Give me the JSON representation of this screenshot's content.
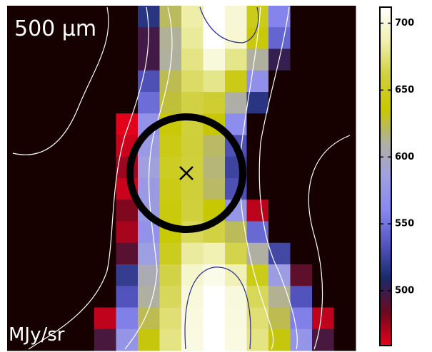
{
  "chart_data": {
    "type": "heatmap",
    "annotations": [
      "500 μm",
      "MJy/sr"
    ],
    "z": [
      [
        440,
        440,
        440,
        440,
        440,
        440,
        516,
        621,
        685,
        712,
        699,
        647,
        558,
        440,
        440,
        440
      ],
      [
        440,
        440,
        440,
        440,
        440,
        440,
        497,
        612,
        682,
        712,
        698,
        640,
        543,
        440,
        440,
        440
      ],
      [
        440,
        440,
        440,
        440,
        440,
        440,
        497,
        611,
        677,
        700,
        678,
        611,
        501,
        440,
        440,
        440
      ],
      [
        440,
        440,
        440,
        440,
        440,
        440,
        532,
        623,
        670,
        678,
        645,
        569,
        440,
        440,
        440,
        440
      ],
      [
        440,
        440,
        440,
        440,
        440,
        440,
        547,
        627,
        662,
        656,
        608,
        516,
        440,
        440,
        440,
        440
      ],
      [
        440,
        440,
        440,
        440,
        440,
        460,
        571,
        639,
        660,
        635,
        565,
        440,
        440,
        440,
        440,
        440
      ],
      [
        440,
        440,
        440,
        440,
        440,
        465,
        579,
        645,
        659,
        620,
        532,
        440,
        440,
        440,
        440,
        440
      ],
      [
        440,
        440,
        440,
        440,
        440,
        474,
        586,
        650,
        660,
        617,
        525,
        440,
        440,
        440,
        440,
        440
      ],
      [
        440,
        440,
        440,
        440,
        440,
        465,
        579,
        645,
        659,
        620,
        532,
        440,
        440,
        440,
        440,
        440
      ],
      [
        440,
        440,
        440,
        440,
        440,
        480,
        580,
        641,
        660,
        637,
        575,
        468,
        440,
        440,
        440,
        440
      ],
      [
        440,
        440,
        440,
        440,
        440,
        472,
        571,
        638,
        668,
        662,
        622,
        545,
        440,
        440,
        440,
        440
      ],
      [
        440,
        440,
        440,
        440,
        440,
        490,
        583,
        648,
        683,
        688,
        664,
        610,
        527,
        440,
        440,
        440
      ],
      [
        440,
        440,
        440,
        440,
        440,
        521,
        603,
        663,
        696,
        705,
        689,
        646,
        581,
        488,
        440,
        440
      ],
      [
        440,
        440,
        440,
        440,
        440,
        534,
        610,
        667,
        700,
        712,
        701,
        667,
        613,
        534,
        440,
        440
      ],
      [
        440,
        440,
        440,
        440,
        467,
        556,
        623,
        673,
        702,
        712,
        702,
        673,
        623,
        556,
        467,
        440
      ],
      [
        440,
        440,
        440,
        440,
        495,
        574,
        634,
        677,
        703,
        712,
        703,
        677,
        634,
        574,
        495,
        440
      ]
    ],
    "clim": [
      459,
      712
    ],
    "cticks": [
      500,
      550,
      600,
      650,
      700
    ],
    "colormap": [
      "#e8001a",
      "#6a0a20",
      "#1a2a6a",
      "#5555c0",
      "#8888f0",
      "#a0a0e0",
      "#b0b0a0",
      "#c8c800",
      "#d0d040",
      "#f0f0b0",
      "#ffffff"
    ],
    "under_color": "#170000"
  }
}
